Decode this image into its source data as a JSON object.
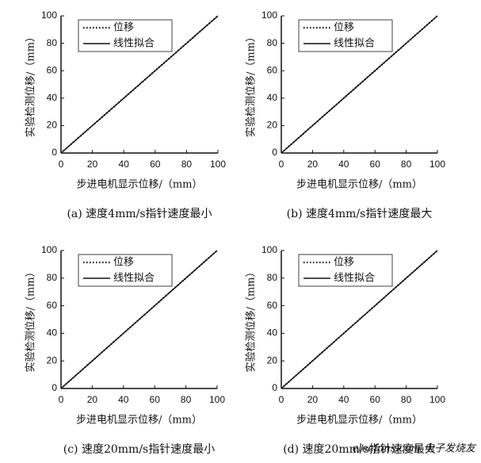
{
  "chart_data": [
    {
      "type": "line",
      "title": "(a) 速度4mm/s指针速度最小",
      "xlabel": "步进电机显示位移/（mm）",
      "ylabel": "实验检测位移/（mm）",
      "x": [
        0,
        20,
        40,
        60,
        80,
        100
      ],
      "series": [
        {
          "name": "位移",
          "color": "#111111",
          "line_style": "dotted",
          "values": [
            0,
            20,
            40,
            60,
            80,
            100
          ]
        },
        {
          "name": "线性拟合",
          "color": "#111111",
          "line_style": "solid",
          "values": [
            0,
            20,
            40,
            60,
            80,
            100
          ]
        }
      ],
      "xlim": [
        0,
        100
      ],
      "ylim": [
        0,
        100
      ],
      "xticks": [
        0,
        20,
        40,
        60,
        80,
        100
      ],
      "yticks": [
        0,
        20,
        40,
        60,
        80,
        100
      ],
      "legend": "upper left"
    },
    {
      "type": "line",
      "title": "(b) 速度4mm/s指针速度最大",
      "xlabel": "步进电机显示位移/（mm）",
      "ylabel": "实验检测位移/（mm）",
      "x": [
        0,
        20,
        40,
        60,
        80,
        100
      ],
      "series": [
        {
          "name": "位移",
          "color": "#111111",
          "line_style": "dotted",
          "values": [
            0,
            20,
            40,
            60,
            80,
            100
          ]
        },
        {
          "name": "线性拟合",
          "color": "#111111",
          "line_style": "solid",
          "values": [
            0,
            20,
            40,
            60,
            80,
            100
          ]
        }
      ],
      "xlim": [
        0,
        100
      ],
      "ylim": [
        0,
        100
      ],
      "xticks": [
        0,
        20,
        40,
        60,
        80,
        100
      ],
      "yticks": [
        0,
        20,
        40,
        60,
        80,
        100
      ],
      "legend": "upper left"
    },
    {
      "type": "line",
      "title": "(c) 速度20mm/s指针速度最小",
      "xlabel": "步进电机显示位移/（mm）",
      "ylabel": "实验检测位移/（mm）",
      "x": [
        0,
        20,
        40,
        60,
        80,
        100
      ],
      "series": [
        {
          "name": "位移",
          "color": "#111111",
          "line_style": "dotted",
          "values": [
            0,
            20,
            40,
            60,
            80,
            100
          ]
        },
        {
          "name": "线性拟合",
          "color": "#111111",
          "line_style": "solid",
          "values": [
            0,
            20,
            40,
            60,
            80,
            100
          ]
        }
      ],
      "xlim": [
        0,
        100
      ],
      "ylim": [
        0,
        100
      ],
      "xticks": [
        0,
        20,
        40,
        60,
        80,
        100
      ],
      "yticks": [
        0,
        20,
        40,
        60,
        80,
        100
      ],
      "legend": "upper left"
    },
    {
      "type": "line",
      "title": "(d) 速度20mm/s指针速度最大",
      "xlabel": "步进电机显示位移/（mm）",
      "ylabel": "实验检测位移/（mm）",
      "x": [
        0,
        20,
        40,
        60,
        80,
        100
      ],
      "series": [
        {
          "name": "位移",
          "color": "#111111",
          "line_style": "dotted",
          "values": [
            0,
            20,
            40,
            60,
            80,
            100
          ]
        },
        {
          "name": "线性拟合",
          "color": "#111111",
          "line_style": "solid",
          "values": [
            0,
            20,
            40,
            60,
            80,
            100
          ]
        }
      ],
      "xlim": [
        0,
        100
      ],
      "ylim": [
        0,
        100
      ],
      "xticks": [
        0,
        20,
        40,
        60,
        80,
        100
      ],
      "yticks": [
        0,
        20,
        40,
        60,
        80,
        100
      ],
      "legend": "upper left"
    }
  ],
  "watermark": "elecfans.com 电子发烧友"
}
